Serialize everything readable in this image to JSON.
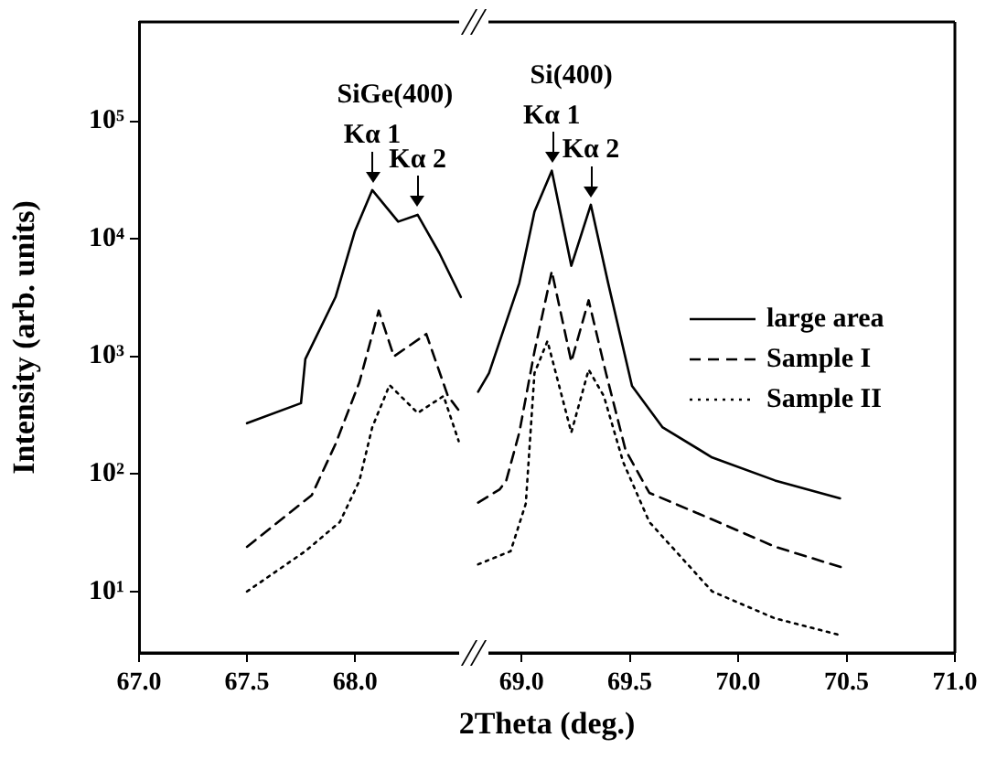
{
  "chart_data": [
    {
      "type": "line",
      "xlabel": "2Theta (deg.)",
      "ylabel": "Intensity (arb. units)",
      "log": "y",
      "grid": false,
      "marker": "none",
      "xlim": [
        67.0,
        68.55
      ],
      "xticks": [
        {
          "value": 67.0,
          "label": "67.0"
        },
        {
          "value": 67.5,
          "label": "67.5"
        },
        {
          "value": 68.0,
          "label": "68.0"
        }
      ],
      "ylim": [
        3,
        700000
      ],
      "yticks": [
        {
          "value": 10,
          "label": "10¹"
        },
        {
          "value": 100,
          "label": "10²"
        },
        {
          "value": 1000,
          "label": "10³"
        },
        {
          "value": 10000,
          "label": "10⁴"
        },
        {
          "value": 100000,
          "label": "10⁵"
        }
      ],
      "series": [
        {
          "color": "#000000",
          "line_style": "solid",
          "x": [
            67.5,
            67.75,
            67.77,
            67.91,
            68.0,
            68.08,
            68.2,
            68.29,
            68.39,
            68.49
          ],
          "values": [
            270,
            400,
            950,
            3200,
            11700,
            26000,
            14000,
            16000,
            7600,
            3200
          ]
        },
        {
          "color": "#000000",
          "line_style": "dashed",
          "x": [
            67.5,
            67.8,
            67.91,
            68.02,
            68.11,
            68.18,
            68.33,
            68.43,
            68.49
          ],
          "values": [
            24,
            66,
            180,
            600,
            2450,
            1000,
            1550,
            460,
            330
          ]
        },
        {
          "color": "#000000",
          "line_style": "dotted",
          "x": [
            67.5,
            67.77,
            67.93,
            68.02,
            68.08,
            68.16,
            68.29,
            68.41,
            68.48
          ],
          "values": [
            10,
            22,
            39,
            87,
            250,
            570,
            330,
            460,
            190
          ]
        }
      ],
      "annotations": [
        "SiGe(400)",
        {
          "text": "Kα 1",
          "x": 68.08,
          "y": 26000
        },
        {
          "text": "Kα 2",
          "x": 68.29,
          "y": 16000
        }
      ]
    },
    {
      "type": "line",
      "log": "y",
      "grid": false,
      "marker": "none",
      "legend": "right",
      "tick_labels": "x",
      "xlim": [
        68.78,
        71.0
      ],
      "xticks": [
        {
          "value": 69.0,
          "label": "69.0"
        },
        {
          "value": 69.5,
          "label": "69.5"
        },
        {
          "value": 70.0,
          "label": "70.0"
        },
        {
          "value": 70.5,
          "label": "70.5"
        },
        {
          "value": 71.0,
          "label": "71.0"
        }
      ],
      "ylim": [
        3,
        700000
      ],
      "series": [
        {
          "name": "large area",
          "color": "#000000",
          "line_style": "solid",
          "x": [
            68.8,
            68.85,
            68.99,
            69.06,
            69.14,
            69.23,
            69.32,
            69.4,
            69.51,
            69.65,
            69.88,
            70.17,
            70.47
          ],
          "values": [
            500,
            720,
            4200,
            17000,
            38000,
            5900,
            19500,
            4200,
            560,
            250,
            138,
            88,
            62
          ]
        },
        {
          "name": "Sample I",
          "color": "#000000",
          "line_style": "dashed",
          "x": [
            68.8,
            68.9,
            68.93,
            68.99,
            69.06,
            69.14,
            69.23,
            69.31,
            69.39,
            69.48,
            69.59,
            69.88,
            70.17,
            70.48
          ],
          "values": [
            57,
            74,
            88,
            225,
            1100,
            5300,
            900,
            3000,
            720,
            160,
            69,
            41,
            24,
            16
          ]
        },
        {
          "name": "Sample II",
          "color": "#000000",
          "line_style": "dotted",
          "x": [
            68.8,
            68.95,
            69.02,
            69.06,
            69.12,
            69.23,
            69.31,
            69.38,
            69.47,
            69.59,
            69.88,
            70.17,
            70.48
          ],
          "values": [
            17,
            22,
            56,
            720,
            1350,
            225,
            770,
            460,
            125,
            39,
            10,
            5.9,
            4.2
          ]
        }
      ],
      "annotations": [
        "Si(400)",
        {
          "text": "Kα 1",
          "x": 69.14,
          "y": 38000
        },
        {
          "text": "Kα 2",
          "x": 69.32,
          "y": 19500
        }
      ]
    }
  ]
}
